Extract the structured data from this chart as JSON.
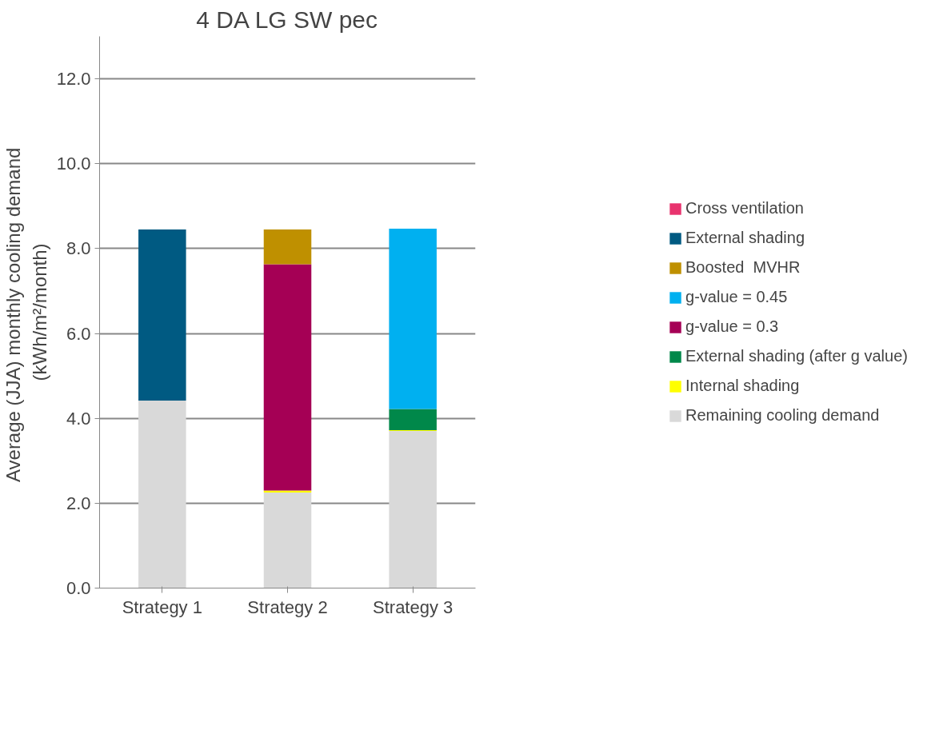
{
  "chart_data": {
    "type": "bar",
    "title": "4 DA LG SW pec",
    "ylabel": "Average (JJA)  monthly cooling demand\n(kWh/m²/month)",
    "categories": [
      "Strategy 1",
      "Strategy 2",
      "Strategy 3"
    ],
    "stacked": true,
    "series": [
      {
        "name": "Remaining cooling demand",
        "color": "#d9d9d9",
        "values": [
          4.42,
          2.25,
          3.7
        ]
      },
      {
        "name": "Internal shading",
        "color": "#ffff00",
        "values": [
          0,
          0.05,
          0.02
        ]
      },
      {
        "name": "External shading (after g value)",
        "color": "#00884a",
        "values": [
          0,
          0,
          0.5
        ]
      },
      {
        "name": "g-value = 0.3",
        "color": "#a50055",
        "values": [
          0,
          5.33,
          0
        ]
      },
      {
        "name": "g-value = 0.45",
        "color": "#00b0f0",
        "values": [
          0,
          0,
          4.25
        ]
      },
      {
        "name": "Boosted  MVHR",
        "color": "#bf9000",
        "values": [
          0,
          0.82,
          0
        ]
      },
      {
        "name": "External shading",
        "color": "#005a82",
        "values": [
          4.03,
          0,
          0
        ]
      },
      {
        "name": "Cross ventilation",
        "color": "#e8336e",
        "values": [
          0,
          0,
          0
        ]
      }
    ],
    "ylim": [
      0,
      13
    ],
    "yticks": [
      {
        "value": 0,
        "label": "0.0"
      },
      {
        "value": 2,
        "label": "2.0"
      },
      {
        "value": 4,
        "label": "4.0"
      },
      {
        "value": 6,
        "label": "6.0"
      },
      {
        "value": 8,
        "label": "8.0"
      },
      {
        "value": 10,
        "label": "10.0"
      },
      {
        "value": 12,
        "label": "12.0"
      }
    ],
    "grid": "y",
    "legend": "right"
  }
}
